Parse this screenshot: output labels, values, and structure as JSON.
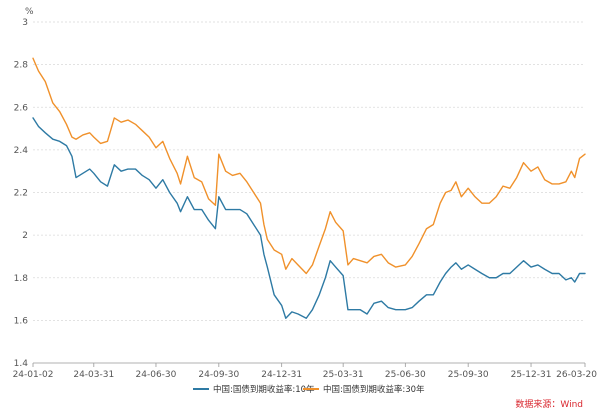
{
  "chart_data": {
    "type": "line",
    "y_unit": "%",
    "ylim": [
      1.4,
      3
    ],
    "yticks": [
      "1.4",
      "1.6",
      "1.8",
      "2",
      "2.2",
      "2.4",
      "2.6",
      "2.8",
      "3"
    ],
    "xlim": [
      "2024-01-02",
      "2026-03-20"
    ],
    "xticks": [
      {
        "date": "2024-01-02",
        "label": "24-01-02"
      },
      {
        "date": "2024-03-31",
        "label": "24-03-31"
      },
      {
        "date": "2024-06-30",
        "label": "24-06-30"
      },
      {
        "date": "2024-09-30",
        "label": "24-09-30"
      },
      {
        "date": "2024-12-31",
        "label": "24-12-31"
      },
      {
        "date": "2025-03-31",
        "label": "25-03-31"
      },
      {
        "date": "2025-06-30",
        "label": "25-06-30"
      },
      {
        "date": "2025-09-30",
        "label": "25-09-30"
      },
      {
        "date": "2025-12-31",
        "label": "25-12-31"
      },
      {
        "date": "2026-03-20",
        "label": "26-03-20"
      }
    ],
    "grid": true,
    "legend_position": "bottom-center",
    "source": "数据来源：Wind",
    "series": [
      {
        "name": "中国:国债到期收益率:10年",
        "color": "#2e7aa4",
        "points": [
          [
            "2024-01-02",
            2.55
          ],
          [
            "2024-01-10",
            2.51
          ],
          [
            "2024-01-20",
            2.48
          ],
          [
            "2024-01-31",
            2.45
          ],
          [
            "2024-02-10",
            2.44
          ],
          [
            "2024-02-20",
            2.42
          ],
          [
            "2024-02-28",
            2.37
          ],
          [
            "2024-03-05",
            2.27
          ],
          [
            "2024-03-15",
            2.29
          ],
          [
            "2024-03-25",
            2.31
          ],
          [
            "2024-03-31",
            2.29
          ],
          [
            "2024-04-10",
            2.25
          ],
          [
            "2024-04-20",
            2.23
          ],
          [
            "2024-04-30",
            2.33
          ],
          [
            "2024-05-10",
            2.3
          ],
          [
            "2024-05-20",
            2.31
          ],
          [
            "2024-05-31",
            2.31
          ],
          [
            "2024-06-10",
            2.28
          ],
          [
            "2024-06-20",
            2.26
          ],
          [
            "2024-06-30",
            2.22
          ],
          [
            "2024-07-10",
            2.26
          ],
          [
            "2024-07-20",
            2.2
          ],
          [
            "2024-07-31",
            2.15
          ],
          [
            "2024-08-05",
            2.11
          ],
          [
            "2024-08-15",
            2.18
          ],
          [
            "2024-08-25",
            2.12
          ],
          [
            "2024-09-05",
            2.12
          ],
          [
            "2024-09-15",
            2.07
          ],
          [
            "2024-09-25",
            2.03
          ],
          [
            "2024-09-30",
            2.18
          ],
          [
            "2024-10-10",
            2.12
          ],
          [
            "2024-10-20",
            2.12
          ],
          [
            "2024-10-31",
            2.12
          ],
          [
            "2024-11-10",
            2.1
          ],
          [
            "2024-11-20",
            2.05
          ],
          [
            "2024-11-30",
            2.0
          ],
          [
            "2024-12-05",
            1.91
          ],
          [
            "2024-12-10",
            1.85
          ],
          [
            "2024-12-20",
            1.72
          ],
          [
            "2024-12-31",
            1.67
          ],
          [
            "2025-01-06",
            1.61
          ],
          [
            "2025-01-15",
            1.64
          ],
          [
            "2025-01-24",
            1.63
          ],
          [
            "2025-02-05",
            1.61
          ],
          [
            "2025-02-14",
            1.65
          ],
          [
            "2025-02-24",
            1.72
          ],
          [
            "2025-03-05",
            1.8
          ],
          [
            "2025-03-12",
            1.88
          ],
          [
            "2025-03-20",
            1.85
          ],
          [
            "2025-03-31",
            1.81
          ],
          [
            "2025-04-07",
            1.65
          ],
          [
            "2025-04-15",
            1.65
          ],
          [
            "2025-04-25",
            1.65
          ],
          [
            "2025-05-05",
            1.63
          ],
          [
            "2025-05-15",
            1.68
          ],
          [
            "2025-05-26",
            1.69
          ],
          [
            "2025-06-05",
            1.66
          ],
          [
            "2025-06-16",
            1.65
          ],
          [
            "2025-06-30",
            1.65
          ],
          [
            "2025-07-10",
            1.66
          ],
          [
            "2025-07-20",
            1.69
          ],
          [
            "2025-07-31",
            1.72
          ],
          [
            "2025-08-10",
            1.72
          ],
          [
            "2025-08-20",
            1.78
          ],
          [
            "2025-08-28",
            1.82
          ],
          [
            "2025-09-05",
            1.85
          ],
          [
            "2025-09-12",
            1.87
          ],
          [
            "2025-09-20",
            1.84
          ],
          [
            "2025-09-30",
            1.86
          ],
          [
            "2025-10-10",
            1.84
          ],
          [
            "2025-10-20",
            1.82
          ],
          [
            "2025-10-31",
            1.8
          ],
          [
            "2025-11-10",
            1.8
          ],
          [
            "2025-11-20",
            1.82
          ],
          [
            "2025-11-30",
            1.82
          ],
          [
            "2025-12-10",
            1.85
          ],
          [
            "2025-12-20",
            1.88
          ],
          [
            "2025-12-31",
            1.85
          ],
          [
            "2026-01-10",
            1.86
          ],
          [
            "2026-01-20",
            1.84
          ],
          [
            "2026-01-31",
            1.82
          ],
          [
            "2026-02-10",
            1.82
          ],
          [
            "2026-02-20",
            1.79
          ],
          [
            "2026-02-28",
            1.8
          ],
          [
            "2026-03-05",
            1.78
          ],
          [
            "2026-03-12",
            1.82
          ],
          [
            "2026-03-20",
            1.82
          ]
        ]
      },
      {
        "name": "中国:国债到期收益率:30年",
        "color": "#f0912b",
        "points": [
          [
            "2024-01-02",
            2.83
          ],
          [
            "2024-01-10",
            2.77
          ],
          [
            "2024-01-20",
            2.72
          ],
          [
            "2024-01-31",
            2.62
          ],
          [
            "2024-02-10",
            2.58
          ],
          [
            "2024-02-20",
            2.52
          ],
          [
            "2024-02-28",
            2.46
          ],
          [
            "2024-03-05",
            2.45
          ],
          [
            "2024-03-15",
            2.47
          ],
          [
            "2024-03-25",
            2.48
          ],
          [
            "2024-03-31",
            2.46
          ],
          [
            "2024-04-10",
            2.43
          ],
          [
            "2024-04-20",
            2.44
          ],
          [
            "2024-04-30",
            2.55
          ],
          [
            "2024-05-10",
            2.53
          ],
          [
            "2024-05-20",
            2.54
          ],
          [
            "2024-05-31",
            2.52
          ],
          [
            "2024-06-10",
            2.49
          ],
          [
            "2024-06-20",
            2.46
          ],
          [
            "2024-06-30",
            2.41
          ],
          [
            "2024-07-10",
            2.44
          ],
          [
            "2024-07-20",
            2.36
          ],
          [
            "2024-07-31",
            2.29
          ],
          [
            "2024-08-05",
            2.24
          ],
          [
            "2024-08-15",
            2.37
          ],
          [
            "2024-08-25",
            2.27
          ],
          [
            "2024-09-05",
            2.25
          ],
          [
            "2024-09-15",
            2.17
          ],
          [
            "2024-09-25",
            2.14
          ],
          [
            "2024-09-30",
            2.38
          ],
          [
            "2024-10-10",
            2.3
          ],
          [
            "2024-10-20",
            2.28
          ],
          [
            "2024-10-31",
            2.29
          ],
          [
            "2024-11-10",
            2.25
          ],
          [
            "2024-11-20",
            2.2
          ],
          [
            "2024-11-30",
            2.15
          ],
          [
            "2024-12-05",
            2.05
          ],
          [
            "2024-12-10",
            1.98
          ],
          [
            "2024-12-20",
            1.93
          ],
          [
            "2024-12-31",
            1.91
          ],
          [
            "2025-01-06",
            1.84
          ],
          [
            "2025-01-15",
            1.89
          ],
          [
            "2025-01-24",
            1.86
          ],
          [
            "2025-02-05",
            1.82
          ],
          [
            "2025-02-14",
            1.86
          ],
          [
            "2025-02-24",
            1.95
          ],
          [
            "2025-03-05",
            2.03
          ],
          [
            "2025-03-12",
            2.11
          ],
          [
            "2025-03-20",
            2.06
          ],
          [
            "2025-03-31",
            2.02
          ],
          [
            "2025-04-07",
            1.86
          ],
          [
            "2025-04-15",
            1.89
          ],
          [
            "2025-04-25",
            1.88
          ],
          [
            "2025-05-05",
            1.87
          ],
          [
            "2025-05-15",
            1.9
          ],
          [
            "2025-05-26",
            1.91
          ],
          [
            "2025-06-05",
            1.87
          ],
          [
            "2025-06-16",
            1.85
          ],
          [
            "2025-06-30",
            1.86
          ],
          [
            "2025-07-10",
            1.9
          ],
          [
            "2025-07-20",
            1.96
          ],
          [
            "2025-07-31",
            2.03
          ],
          [
            "2025-08-10",
            2.05
          ],
          [
            "2025-08-20",
            2.15
          ],
          [
            "2025-08-28",
            2.2
          ],
          [
            "2025-09-05",
            2.21
          ],
          [
            "2025-09-12",
            2.25
          ],
          [
            "2025-09-20",
            2.18
          ],
          [
            "2025-09-30",
            2.22
          ],
          [
            "2025-10-10",
            2.18
          ],
          [
            "2025-10-20",
            2.15
          ],
          [
            "2025-10-31",
            2.15
          ],
          [
            "2025-11-10",
            2.18
          ],
          [
            "2025-11-20",
            2.23
          ],
          [
            "2025-11-30",
            2.22
          ],
          [
            "2025-12-10",
            2.27
          ],
          [
            "2025-12-20",
            2.34
          ],
          [
            "2025-12-31",
            2.3
          ],
          [
            "2026-01-10",
            2.32
          ],
          [
            "2026-01-20",
            2.26
          ],
          [
            "2026-01-31",
            2.24
          ],
          [
            "2026-02-10",
            2.24
          ],
          [
            "2026-02-20",
            2.25
          ],
          [
            "2026-02-28",
            2.3
          ],
          [
            "2026-03-05",
            2.27
          ],
          [
            "2026-03-12",
            2.36
          ],
          [
            "2026-03-20",
            2.38
          ]
        ]
      }
    ]
  }
}
